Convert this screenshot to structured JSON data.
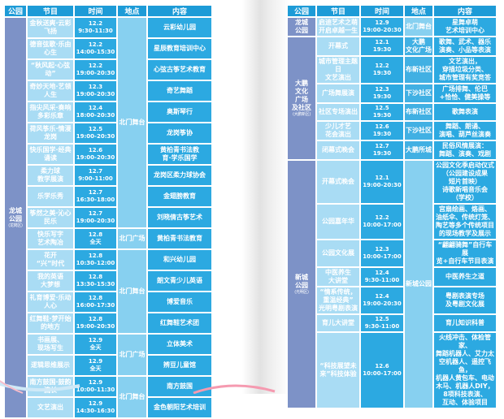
{
  "page": {
    "background": "#ffffff"
  },
  "colors": {
    "header": "#1d9bd7",
    "program_cell": "#a9dcf4",
    "time_cell": "#2ca9e1",
    "content_cell": "#2ca9e1",
    "location_cell_light": "#87d0f0",
    "location_cell_mid": "#41b0e3",
    "park_cell": "#7d92c7",
    "grid": "#ffffff",
    "text": "#ffffff",
    "deco_pink": "#f59ab0",
    "deco_blue": "#cfe9f7"
  },
  "tables": [
    {
      "id": "left",
      "columns": [
        "公园",
        "节目",
        "时间",
        "地点",
        "内容"
      ],
      "rows": [
        {
          "park": {
            "text": "龙城\n公园",
            "sub": "(龙岗区)",
            "span": 19
          },
          "program": "金秋送爽·云彩飞扬",
          "time": "12.2\n9:30-11:30",
          "location": {
            "text": "北门舞台",
            "span": 10,
            "mid": false
          },
          "content": "云彩幼儿园"
        },
        {
          "program": "德音弦歌·乐由心生",
          "time": "12.2\n14:00-15:30",
          "content": "星辰教育培训中心"
        },
        {
          "program": "“秋风起·心弦动”",
          "time": "12.2\n19:00-20:30",
          "content": "心弦古筝艺术教育"
        },
        {
          "program": "奇妙天地·艺领人生",
          "time": "12.3\n19:00-20:30",
          "content": "奇艺舞蹈"
        },
        {
          "program": "指尖风采·奏响多彩乐章",
          "time": "12.4\n18:00-20:30",
          "content": "奥斯琴行"
        },
        {
          "program": "荷风筝乐·情漫龙岗",
          "time": "12.5\n19:00-20:30",
          "content": "龙岗筝协"
        },
        {
          "program": "快乐国学·经典诵读",
          "time": "12.6\n19:00-20:30",
          "content": "黄柏青书法教\n育·学乐国学"
        },
        {
          "program": "柔力球\n教学展演",
          "time": "12.7\n9:00-11:00",
          "content": "龙岗区柔力球协会"
        },
        {
          "program": "乐学乐秀",
          "time": "12.7\n16:30-18:00",
          "content": "金翅膀教育"
        },
        {
          "program": "筝然之美·沁心民乐",
          "time": "12.7\n19:00-20:30",
          "content": "刘晓倩古筝艺术"
        },
        {
          "program": "快乐写字\n艺术陶冶",
          "time": "12.8\n全天",
          "location": {
            "text": "北门广场",
            "span": 1,
            "mid": false
          },
          "content": "黄柏青书法教育"
        },
        {
          "program": "花开\n“兴”时代",
          "time": "12.8\n10:30-12:00",
          "location": {
            "text": "北门舞台",
            "span": 4,
            "mid": false
          },
          "content": "和兴幼儿园"
        },
        {
          "program": "我的英语\n大梦想",
          "time": "12.8\n13:30-15:30",
          "content": "朗文青少儿英语"
        },
        {
          "program": "礼育博爱·乐动人心",
          "time": "12.8\n16:00-17:30",
          "content": "博爱音乐"
        },
        {
          "program": "红舞鞋·梦开始的地方",
          "time": "12.8\n19:00-20:30",
          "content": "红舞鞋艺术团"
        },
        {
          "program": "书画展、\n现场写生",
          "time": "12.9\n全天",
          "location": {
            "text": "北门广场",
            "span": 2,
            "mid": false
          },
          "content": "立体美术"
        },
        {
          "program": "逻辑思维展示",
          "time": "12.9\n全天",
          "content": "辨豆儿童馆"
        },
        {
          "program": "南方鼓国·鼓韵流长",
          "time": "12.9\n10:00-11:30",
          "location": {
            "text": "北门舞台",
            "span": 2,
            "mid": false
          },
          "content": "南方鼓国"
        },
        {
          "program": "文艺演出",
          "time": "12.9\n14:30-16:30",
          "content": "金色朝阳艺术培训"
        }
      ]
    },
    {
      "id": "right",
      "columns": [
        "公园",
        "节目",
        "时间",
        "地点",
        "内容"
      ],
      "rows": [
        {
          "park": {
            "text": "龙城\n公园",
            "sub": "",
            "span": 1
          },
          "program": "启迪艺术之萌\n开启卓越一生",
          "time": "12.9\n19:00-20:30",
          "location": {
            "text": "北门舞台",
            "span": 1,
            "mid": false
          },
          "content": "星舞卓萌\n艺术培训中心"
        },
        {
          "park": {
            "text": "大鹏\n文化\n广场\n及社区",
            "sub": "(大鹏新区)",
            "span": 6
          },
          "program": "开幕式",
          "time": "12.1\n19:30",
          "location": {
            "text": "大鹏\n文化广场",
            "span": 1,
            "mid": true
          },
          "content": "歌舞、武术、器乐\n演奏、小品等表演"
        },
        {
          "program": "城市管理主题日\n文艺演出",
          "time": "12.2\n19:30",
          "location": {
            "text": "布新社区",
            "span": 1,
            "mid": true
          },
          "content": "文艺演出，\n穿插垃圾分类、\n城市管理有奖竞答"
        },
        {
          "program": "广场舞展演",
          "time": "12.3\n19:30",
          "location": {
            "text": "下沙社区",
            "span": 1,
            "mid": true
          },
          "content": "广场排舞、伦巴\n+恰恰、健美操等"
        },
        {
          "program": "社区专场演出",
          "time": "12.5\n19:30",
          "location": {
            "text": "布新社区",
            "span": 1,
            "mid": true
          },
          "content": "歌舞表演"
        },
        {
          "program": "少儿才艺\n花会演出",
          "time": "12.6\n19:30",
          "location": {
            "text": "下沙社区",
            "span": 1,
            "mid": true
          },
          "content": "舞蹈、朗诵、\n演唱、葫芦丝演奏"
        },
        {
          "program": "闭幕式晚会",
          "time": "12.7\n19:30",
          "location": {
            "text": "大鹏所城",
            "span": 1,
            "mid": true
          },
          "content": "民俗风情展演：\n舞蹈、演奏、戏剧"
        },
        {
          "park": {
            "text": "新城\n公园",
            "sub": "(光明区)",
            "span": 7
          },
          "program": "开幕式晚会",
          "time": "12.1\n19:00-20:30",
          "location": {
            "text": "新城公园",
            "span": 7,
            "mid": false
          },
          "content": "公园文化季启动仪式\n（公园建设成果\n短片首映）\n诗歌新唱音乐会\n（学校）"
        },
        {
          "program": "公园嘉年华",
          "time": "12.2\n10:00-17:00",
          "content": "宫扇绘画、烙画、\n油纸伞、传统灯笼、\n陶艺等多个传统项目\n的现场教学及展示"
        },
        {
          "program": "公园文化展",
          "time": "12.3\n10:00-17:00",
          "content": "“翩翩骑舞”自行车展\n览+自行车节目表演"
        },
        {
          "program": "中医养生\n大讲堂",
          "time": "12.4\n9:30-11:00",
          "content": "中医养生之道"
        },
        {
          "program": "“情系传统，\n重温经典”\n光明粤剧表演",
          "time": "12.4\n19:00-20:30",
          "content": "粤剧表演专场\n及粤剧文化展"
        },
        {
          "program": "育儿大讲堂",
          "time": "12.5\n9:30-11:00",
          "content": "育儿知识科普"
        },
        {
          "program": "“科技展望未\n来”科技体验",
          "time": "12.6\n10:00-17:00",
          "content": "火线冲击、体检管家、\n舞蹈机器人、艾力太\n空机器人、遥控飞鱼，\n机器人黄包车、电动\n木马、机器人DIY，\n8项科技表演、\n互动、体验项目"
        }
      ]
    }
  ]
}
